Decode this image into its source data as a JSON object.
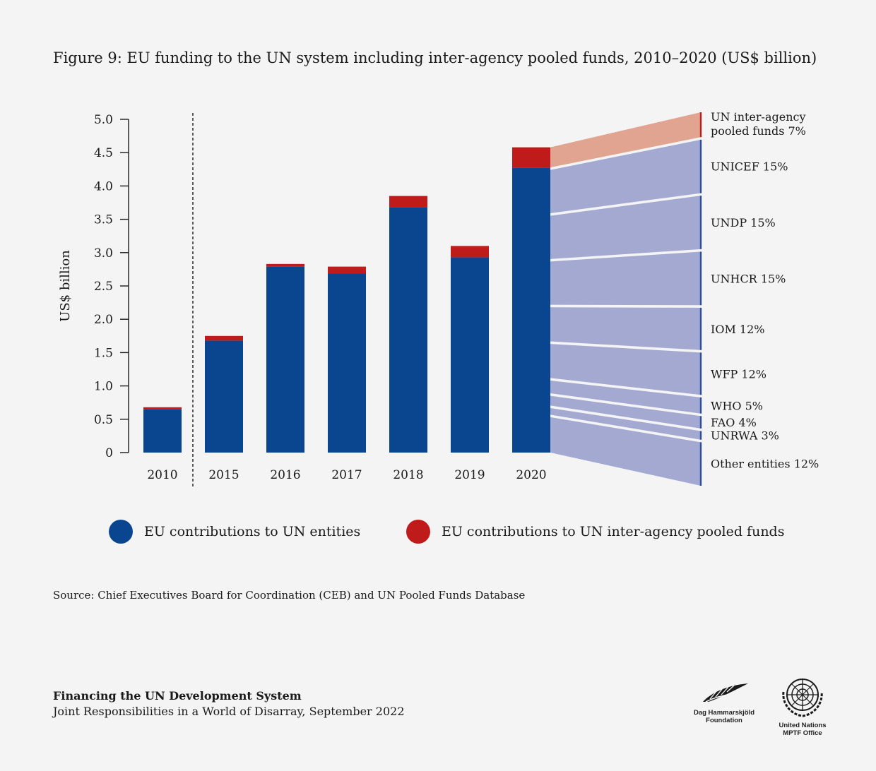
{
  "header": {
    "title": "Figure 9: EU funding to the UN system including inter-agency pooled funds, 2010–2020 (US$ billion)"
  },
  "chart_data": {
    "type": "bar",
    "stacked": true,
    "categories": [
      "2010",
      "2015",
      "2016",
      "2017",
      "2018",
      "2019",
      "2020"
    ],
    "series": [
      {
        "name": "EU contributions to UN entities",
        "values": [
          0.65,
          1.68,
          2.79,
          2.69,
          3.68,
          2.93,
          4.27
        ],
        "color": "#0a468f"
      },
      {
        "name": "EU contributions to UN inter-agency pooled funds",
        "values": [
          0.03,
          0.07,
          0.04,
          0.1,
          0.17,
          0.17,
          0.31
        ],
        "color": "#c01b1b"
      }
    ],
    "ylabel": "US$ billion",
    "ylim": [
      0,
      5.0
    ],
    "yticks": [
      "0",
      "0.5",
      "1.0",
      "1.5",
      "2.0",
      "2.5",
      "3.0",
      "3.5",
      "4.0",
      "4.5",
      "5.0"
    ],
    "break_after_category": "2010",
    "breakdown_2020": [
      {
        "label": "UN inter-agency pooled funds 7%",
        "share": 7,
        "pooled": true
      },
      {
        "label": "UNICEF 15%",
        "share": 15
      },
      {
        "label": "UNDP 15%",
        "share": 15
      },
      {
        "label": "UNHCR 15%",
        "share": 15
      },
      {
        "label": "IOM 12%",
        "share": 12
      },
      {
        "label": "WFP 12%",
        "share": 12
      },
      {
        "label": "WHO 5%",
        "share": 5
      },
      {
        "label": "FAO 4%",
        "share": 4
      },
      {
        "label": "UNRWA 3%",
        "share": 3
      },
      {
        "label": "Other entities 12%",
        "share": 12
      }
    ],
    "colors": {
      "entities": "#0a468f",
      "pooled": "#c01b1b",
      "breakdown_fill": "#a3a9d1",
      "breakdown_pooled_fill": "#e0a490",
      "breakdown_line": "#2b4d9c"
    }
  },
  "legend": {
    "items": [
      {
        "label": "EU contributions to UN entities",
        "color": "#0a468f"
      },
      {
        "label": "EU contributions to UN inter-agency pooled funds",
        "color": "#c01b1b"
      }
    ]
  },
  "source": "Source: Chief Executives Board for Coordination (CEB) and UN Pooled Funds Database",
  "footer": {
    "title": "Financing the UN Development System",
    "subtitle": "Joint Responsibilities in a World of Disarray, September 2022"
  },
  "logos": {
    "dh": {
      "name": "dag-hammarskjold-logo",
      "line1": "Dag Hammarskjöld",
      "line2": "Foundation"
    },
    "un": {
      "name": "un-emblem-logo",
      "line1": "United Nations",
      "line2": "MPTF Office"
    }
  }
}
